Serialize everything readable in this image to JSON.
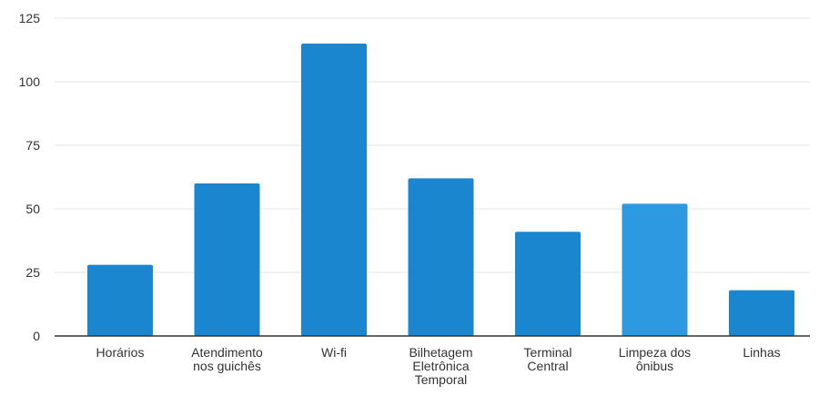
{
  "chart_data": {
    "type": "bar",
    "categories": [
      [
        "Horários"
      ],
      [
        "Atendimento",
        "nos guichês"
      ],
      [
        "Wi-fi"
      ],
      [
        "Bilhetagem",
        "Eletrônica",
        "Temporal"
      ],
      [
        "Terminal",
        "Central"
      ],
      [
        "Limpeza dos",
        "ônibus"
      ],
      [
        "Linhas"
      ]
    ],
    "values": [
      28,
      60,
      115,
      62,
      41,
      52,
      18
    ],
    "yticks": [
      "0",
      "25",
      "50",
      "75",
      "100",
      "125"
    ],
    "ylim": [
      0,
      125
    ],
    "grid": true,
    "legend": "none",
    "bar_colors": [
      "#1a86d0",
      "#1a86d0",
      "#1a86d0",
      "#1a86d0",
      "#1a86d0",
      "#2c99e0",
      "#1a86d0"
    ]
  }
}
